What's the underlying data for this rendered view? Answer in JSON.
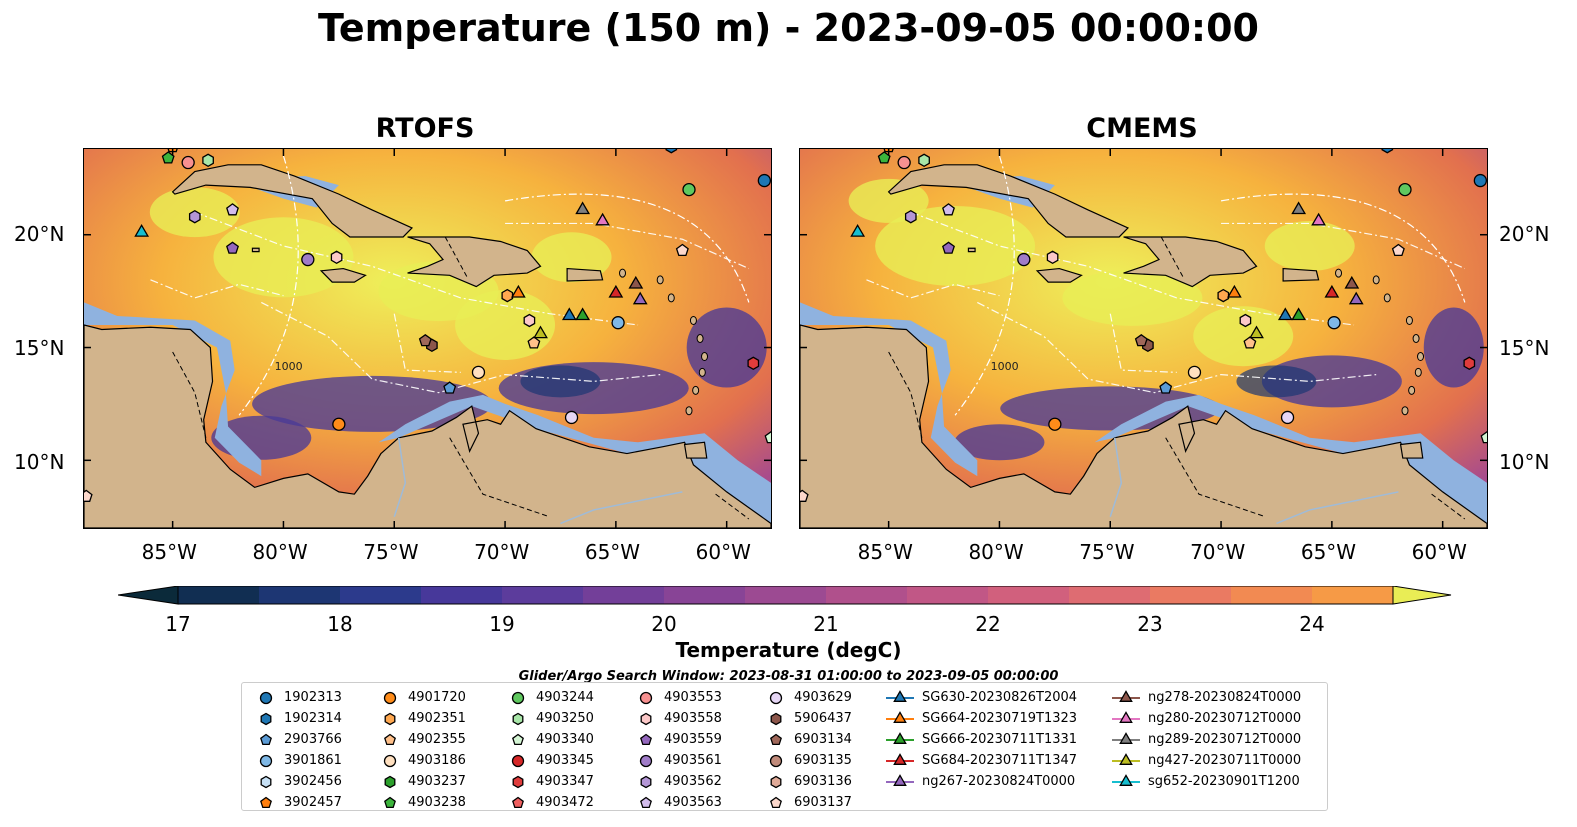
{
  "title": "Temperature (150 m) - 2023-09-05 00:00:00",
  "panels": [
    {
      "title": "RTOFS"
    },
    {
      "title": "CMEMS"
    }
  ],
  "lat_ticks": [
    "20°N",
    "15°N",
    "10°N"
  ],
  "lon_ticks": [
    "85°W",
    "80°W",
    "75°W",
    "70°W",
    "65°W",
    "60°W"
  ],
  "colorbar": {
    "label": "Temperature (degC)",
    "ticks": [
      "17",
      "18",
      "19",
      "20",
      "21",
      "22",
      "23",
      "24"
    ],
    "colors": [
      "#0b2a3a",
      "#112e52",
      "#1d3673",
      "#2c3a8c",
      "#47389a",
      "#5c3c9c",
      "#733f99",
      "#884496",
      "#9c4a92",
      "#b0508c",
      "#c15786",
      "#d1607d",
      "#de6c72",
      "#ea7a62",
      "#f28a52",
      "#f69a46",
      "#f8ab3e",
      "#f7bd3b",
      "#f3d23f",
      "#e9ed55"
    ]
  },
  "search_window": "Glider/Argo Search Window: 2023-08-31 01:00:00 to 2023-09-05 00:00:00",
  "legend": [
    [
      {
        "label": "1902313",
        "shape": "circle",
        "color": "#1f77b4"
      },
      {
        "label": "1902314",
        "shape": "hexagon",
        "color": "#1f77b4"
      },
      {
        "label": "2903766",
        "shape": "pentagon",
        "color": "#5b9bd5"
      },
      {
        "label": "3901861",
        "shape": "circle",
        "color": "#7fb8e6"
      },
      {
        "label": "3902456",
        "shape": "hexagon",
        "color": "#c6e0f5"
      },
      {
        "label": "3902457",
        "shape": "pentagon",
        "color": "#ff7f0e"
      }
    ],
    [
      {
        "label": "4901720",
        "shape": "circle",
        "color": "#ff8c1a"
      },
      {
        "label": "4902351",
        "shape": "hexagon",
        "color": "#ffa850"
      },
      {
        "label": "4902355",
        "shape": "pentagon",
        "color": "#ffc08a"
      },
      {
        "label": "4903186",
        "shape": "circle",
        "color": "#ffe0c0"
      },
      {
        "label": "4903237",
        "shape": "hexagon",
        "color": "#2ca02c"
      },
      {
        "label": "4903238",
        "shape": "pentagon",
        "color": "#3cb43c"
      }
    ],
    [
      {
        "label": "4903244",
        "shape": "circle",
        "color": "#5fc85f"
      },
      {
        "label": "4903250",
        "shape": "hexagon",
        "color": "#a8e6a8"
      },
      {
        "label": "4903340",
        "shape": "pentagon",
        "color": "#d4f5d4"
      },
      {
        "label": "4903345",
        "shape": "circle",
        "color": "#d62728"
      },
      {
        "label": "4903347",
        "shape": "hexagon",
        "color": "#e03c3c"
      },
      {
        "label": "4903472",
        "shape": "pentagon",
        "color": "#f06060"
      }
    ],
    [
      {
        "label": "4903553",
        "shape": "circle",
        "color": "#f79090"
      },
      {
        "label": "4903558",
        "shape": "hexagon",
        "color": "#fcc8c8"
      },
      {
        "label": "4903559",
        "shape": "pentagon",
        "color": "#9467bd"
      },
      {
        "label": "4903561",
        "shape": "circle",
        "color": "#a07cc8"
      },
      {
        "label": "4903562",
        "shape": "hexagon",
        "color": "#b496d6"
      },
      {
        "label": "4903563",
        "shape": "pentagon",
        "color": "#d2bcec"
      }
    ],
    [
      {
        "label": "4903629",
        "shape": "circle",
        "color": "#e6d6f5"
      },
      {
        "label": "5906437",
        "shape": "hexagon",
        "color": "#8c564b"
      },
      {
        "label": "6903134",
        "shape": "pentagon",
        "color": "#a0685a"
      },
      {
        "label": "6903135",
        "shape": "circle",
        "color": "#c08a7a"
      },
      {
        "label": "6903136",
        "shape": "hexagon",
        "color": "#e0aa98"
      },
      {
        "label": "6903137",
        "shape": "pentagon",
        "color": "#fcd8cc"
      }
    ],
    [
      {
        "label": "SG630-20230826T2004",
        "shape": "triangle",
        "color": "#1f77b4"
      },
      {
        "label": "SG664-20230719T1323",
        "shape": "triangle",
        "color": "#ff7f0e"
      },
      {
        "label": "SG666-20230711T1331",
        "shape": "triangle",
        "color": "#2ca02c"
      },
      {
        "label": "SG684-20230711T1347",
        "shape": "triangle",
        "color": "#d62728"
      },
      {
        "label": "ng267-20230824T0000",
        "shape": "triangle",
        "color": "#9467bd"
      }
    ],
    [
      {
        "label": "ng278-20230824T0000",
        "shape": "triangle",
        "color": "#8c564b"
      },
      {
        "label": "ng280-20230712T0000",
        "shape": "triangle",
        "color": "#e377c2"
      },
      {
        "label": "ng289-20230712T0000",
        "shape": "triangle",
        "color": "#7f7f7f"
      },
      {
        "label": "ng427-20230711T0000",
        "shape": "triangle",
        "color": "#bcbd22"
      },
      {
        "label": "sg652-20230901T1200",
        "shape": "triangle",
        "color": "#17becf"
      }
    ]
  ],
  "markers": [
    {
      "label": "1902313",
      "lon": -58.3,
      "lat": 22.4
    },
    {
      "label": "1902314",
      "lon": -62.5,
      "lat": 23.9
    },
    {
      "label": "2903766",
      "lon": -72.5,
      "lat": 13.2
    },
    {
      "label": "3901861",
      "lon": -64.9,
      "lat": 16.1
    },
    {
      "label": "3902457",
      "lon": -85.0,
      "lat": 23.9
    },
    {
      "label": "4901720",
      "lon": -77.5,
      "lat": 11.6
    },
    {
      "label": "4902351",
      "lon": -69.9,
      "lat": 17.3
    },
    {
      "label": "4902355",
      "lon": -68.7,
      "lat": 15.2
    },
    {
      "label": "4903186",
      "lon": -71.2,
      "lat": 13.9
    },
    {
      "label": "4903238",
      "lon": -85.2,
      "lat": 23.4
    },
    {
      "label": "4903244",
      "lon": -61.7,
      "lat": 22.0
    },
    {
      "label": "4903250",
      "lon": -83.4,
      "lat": 23.3
    },
    {
      "label": "4903340",
      "lon": -58.0,
      "lat": 11.0
    },
    {
      "label": "4903347",
      "lon": -58.8,
      "lat": 14.3
    },
    {
      "label": "4903553",
      "lon": -84.3,
      "lat": 23.2
    },
    {
      "label": "4903558",
      "lon": -68.9,
      "lat": 16.2
    },
    {
      "label": "4903559",
      "lon": -82.3,
      "lat": 19.4
    },
    {
      "label": "4903561",
      "lon": -78.9,
      "lat": 18.9
    },
    {
      "label": "4903562",
      "lon": -84.0,
      "lat": 20.8
    },
    {
      "label": "4903563",
      "lon": -82.3,
      "lat": 21.1
    },
    {
      "label": "4903629",
      "lon": -67.0,
      "lat": 11.9
    },
    {
      "label": "5906437",
      "lon": -73.3,
      "lat": 15.1
    },
    {
      "label": "6903134",
      "lon": -73.6,
      "lat": 15.3
    },
    {
      "label": "6903137",
      "lon": -62.0,
      "lat": 19.3
    },
    {
      "label": "4903558",
      "lon": -77.6,
      "lat": 19.0
    },
    {
      "label": "6903137",
      "lon": -88.9,
      "lat": 8.4
    },
    {
      "label": "SG630-20230826T2004",
      "lon": -67.1,
      "lat": 16.4
    },
    {
      "label": "SG664-20230719T1323",
      "lon": -69.4,
      "lat": 17.4
    },
    {
      "label": "SG666-20230711T1331",
      "lon": -66.5,
      "lat": 16.4
    },
    {
      "label": "SG684-20230711T1347",
      "lon": -65.0,
      "lat": 17.4
    },
    {
      "label": "ng267-20230824T0000",
      "lon": -63.9,
      "lat": 17.1
    },
    {
      "label": "ng278-20230824T0000",
      "lon": -64.1,
      "lat": 17.8
    },
    {
      "label": "ng280-20230712T0000",
      "lon": -65.6,
      "lat": 20.6
    },
    {
      "label": "ng289-20230712T0000",
      "lon": -66.5,
      "lat": 21.1
    },
    {
      "label": "ng427-20230711T0000",
      "lon": -68.4,
      "lat": 15.6
    },
    {
      "label": "sg652-20230901T1200",
      "lon": -86.4,
      "lat": 20.1
    }
  ],
  "map_extent": {
    "lon": [
      -89,
      -58
    ],
    "lat": [
      7,
      23.8
    ]
  },
  "contour_label": "1000"
}
